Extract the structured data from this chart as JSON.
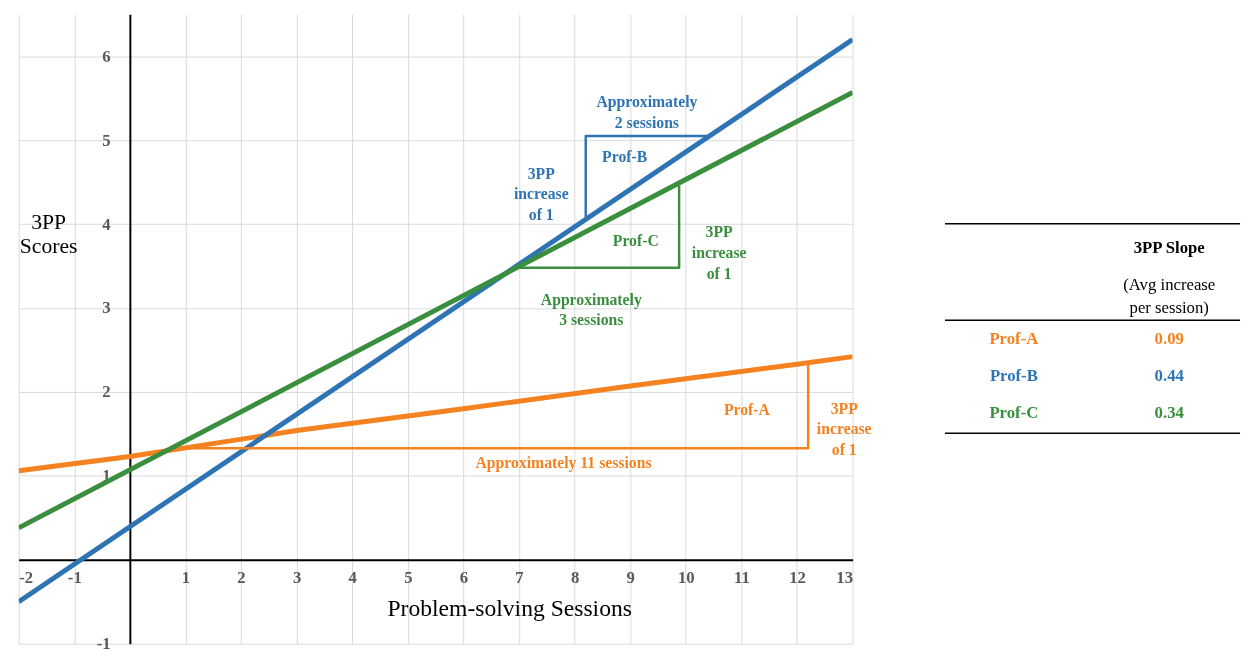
{
  "chart_data": [
    {
      "type": "line",
      "xlabel": "Problem-solving Sessions",
      "ylabel": "3PP\nScores",
      "xlim": [
        -2,
        13
      ],
      "ylim": [
        -1,
        6.5
      ],
      "xticks": [
        -2,
        -1,
        {
          "value": 0,
          "label": null
        },
        1,
        2,
        3,
        4,
        5,
        6,
        7,
        8,
        9,
        10,
        11,
        12,
        13
      ],
      "yticks": [
        -1,
        {
          "value": 0,
          "label": null
        },
        1,
        2,
        3,
        4,
        5,
        6
      ],
      "grid": true,
      "marker": "none",
      "line_style": "solid",
      "series": [
        {
          "color": "#f58220",
          "x": [
            -2,
            0,
            3,
            6,
            9,
            12,
            13
          ],
          "values": [
            1.06,
            1.23,
            1.54,
            1.8,
            2.07,
            2.33,
            2.42
          ]
        },
        {
          "color": "#2e74b5",
          "x": [
            -2,
            13
          ],
          "values": [
            -0.5,
            6.2
          ]
        },
        {
          "color": "#3a8f3e",
          "x": [
            -2,
            13
          ],
          "values": [
            0.38,
            5.57
          ]
        },
        {
          "color": "#f58220",
          "x": [
            0.95,
            12.2,
            12.2
          ],
          "values": [
            1.33,
            1.33,
            2.33
          ]
        },
        {
          "color": "#2e74b5",
          "x": [
            8.2,
            8.2,
            10.4
          ],
          "values": [
            4.08,
            5.05,
            5.05
          ]
        },
        {
          "color": "#3a8f3e",
          "x": [
            6.97,
            9.88,
            9.88
          ],
          "values": [
            3.48,
            3.48,
            4.46
          ]
        }
      ],
      "annotations": [
        "Approximately\n2 sessions",
        "3PP\nincrease\nof 1",
        "Prof-B",
        "Prof-C",
        "3PP\nincrease\nof 1",
        "Approximately\n3 sessions",
        "Prof-A",
        "3PP\nincrease\nof 1",
        "Approximately 11 sessions"
      ]
    },
    {
      "type": "other",
      "title": "3PP Slope",
      "subtitle": "(Avg increase\nper session)",
      "categories": [
        "Prof-A",
        "Prof-B",
        "Prof-C"
      ],
      "values": [
        0.09,
        0.44,
        0.34
      ],
      "colors": [
        "#f58220",
        "#2e74b5",
        "#3a8f3e"
      ],
      "data_labels": true
    }
  ]
}
